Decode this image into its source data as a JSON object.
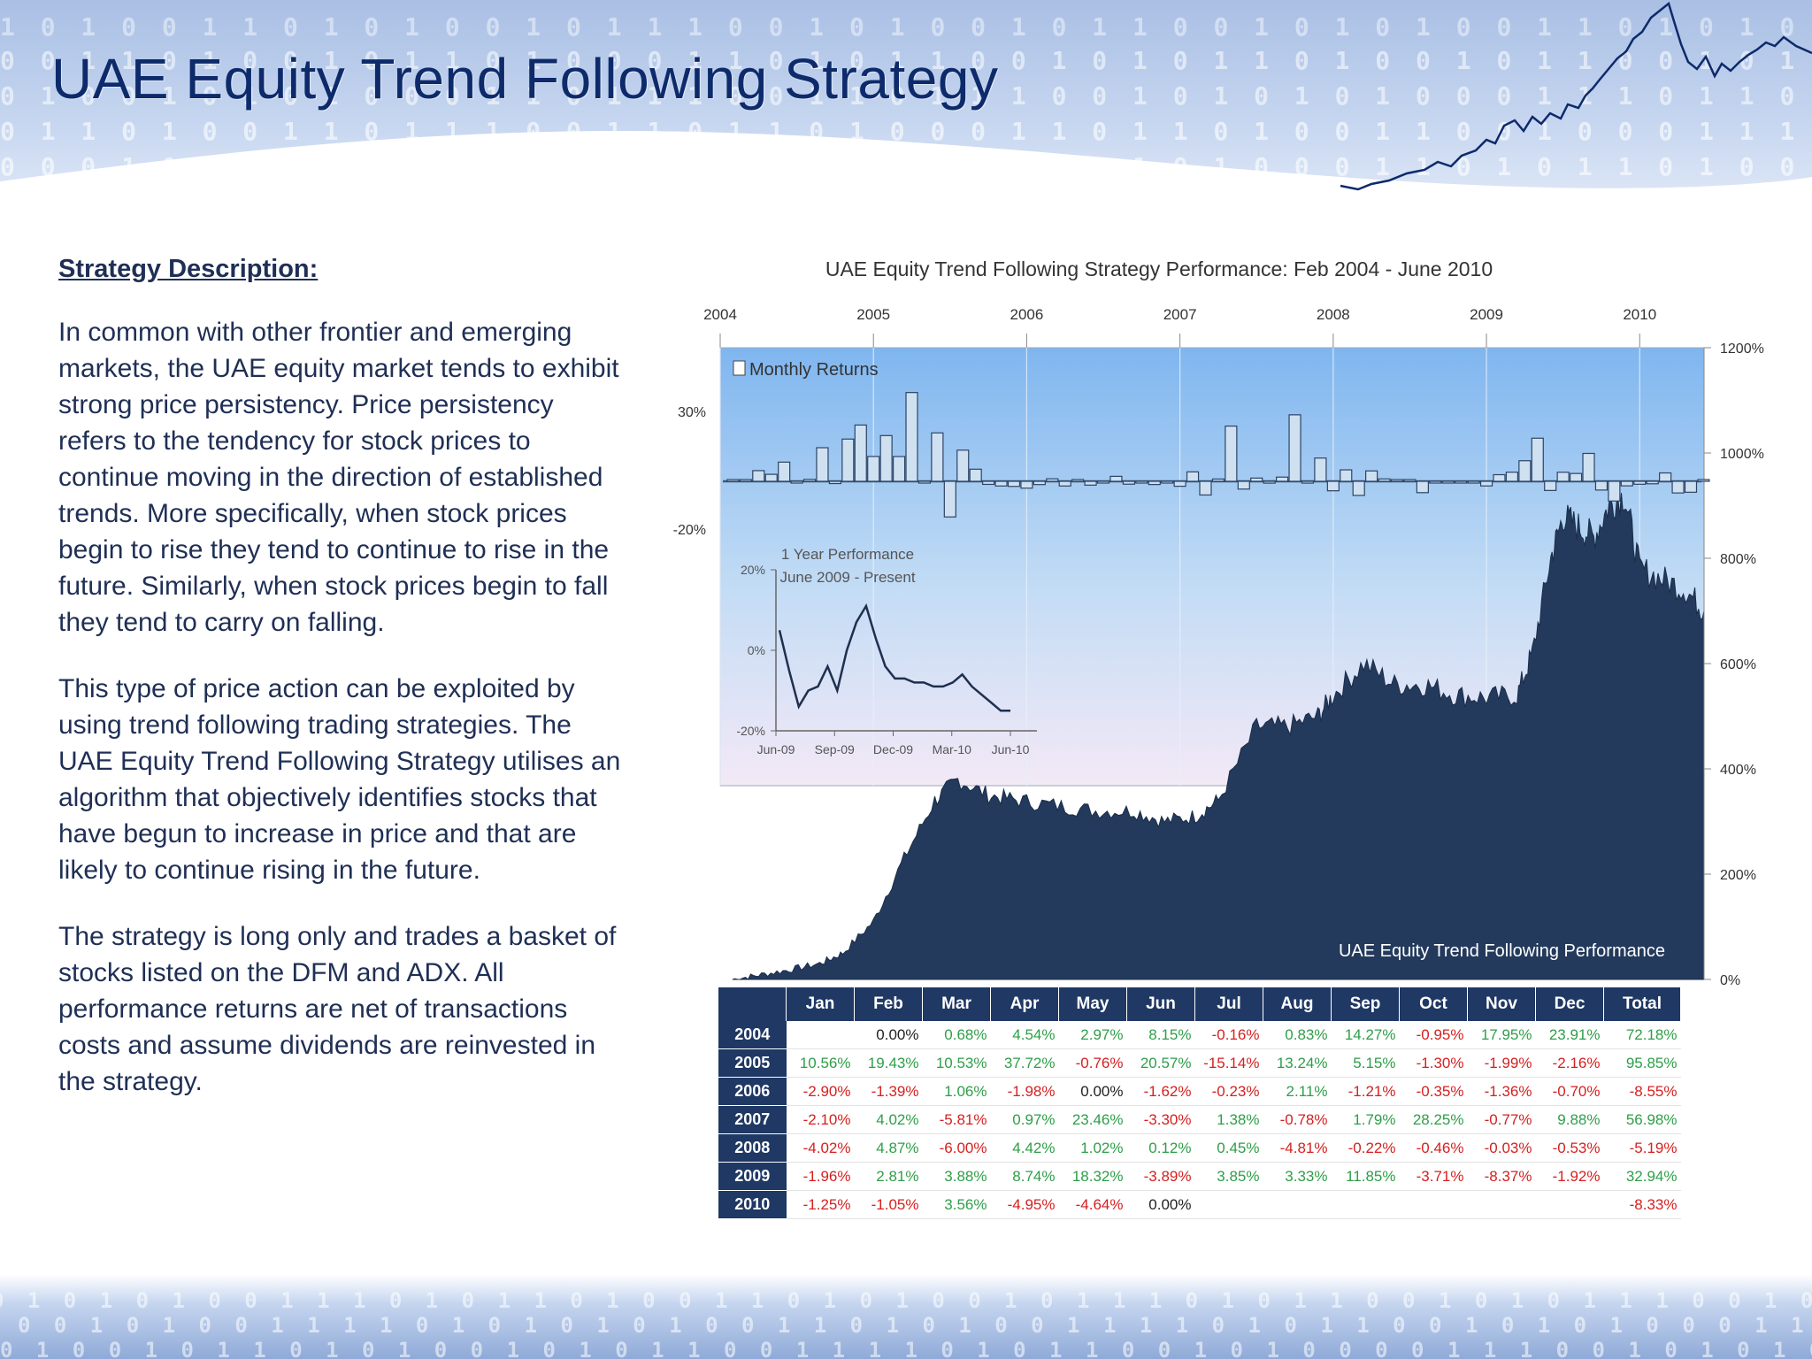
{
  "slide": {
    "title": "UAE Equity Trend Following Strategy"
  },
  "description": {
    "heading": "Strategy Description:",
    "paragraphs": [
      "In common with other frontier and emerging markets, the UAE equity market tends to exhibit strong price persistency.  Price persistency refers to the tendency for stock prices to continue moving in the direction of established trends.  More specifically, when stock prices begin to rise they tend to continue to rise in the future. Similarly, when stock prices begin to fall they tend to carry on falling.",
      "This type of price action can be exploited by using trend following trading strategies.  The UAE Equity Trend Following Strategy utilises an algorithm that objectively identifies stocks that have begun to increase in price and that are likely to continue rising in the future.",
      "The strategy is long only and trades a basket of stocks listed on the DFM and ADX.  All performance returns are net of transactions costs and assume dividends are reinvested in the strategy."
    ]
  },
  "banner": {
    "binary_rows": [
      "1 0 1 0 0 1 1 0 1 0 1 0 0 1 0 1 1 1 0 0 1 0 1 0 0 1 0 1 1 0 0 1 0 1 0 1 0 0 1 1 0 1 0 1 0 0 1 0 1 1 0 1 0",
      "0 0 1 1 0 1 0 0 1 0 1 1 0 1 0 0 0 1 1 0 1 0 1 1 0 0 1 0 1 0 1 1 0 1 0 0 1 0 1 1 0 0 1 0 1 0 1 1 0 1 0",
      "0 1 0 0 1 0 1 0 1 0 0 0 1 1 0 1 1 1 0 0 1 1 0 1 1 1 0 0 1 0 1 0 1 0 1 0 0 0 1 1 1 0 1 1 0 1 0 1 0 0 1",
      "0 1 1 0 1 0 0 1 1 0 1 1 1 0 0 1 1 0 1 1 0 1 0 0 0 1 1 0 1 1 0 1 0 0 1 1 0 0 1 0 0 0 1 1 1 0 1 1 0 1",
      "0 0 0 1 0 1 0 0 0 1 1 0 1 0 1 0 0 1 0 1 1 0 1 1 0 1 0 0 1 0 1 0 0 0 1 1 0 1 0 1 1 0 1 0 0 1 0 1 0 1"
    ],
    "footer_rows": [
      "0 1 0 1 0 1 0 0 1 1 1 0 1 0 1 1 0 1 0 0 1 1 0 1 0 1 0 0 1 0 1 1 1 0 1 0 1 1 0 0 1 0 1 0 1 1 1 0 0 1 0 1 0 1 0 0 1 1 0 1 0 1",
      "0 0 1 0 1 0 0 1 1 1 1 0 1 0 1 0 1 0 1 0 0 1 1 0 1 0 1 0 0 1 1 1 1 0 1 0 1 1 0 0 1 0 1 0 1 0 0 0 1 1 0 0 1 0 1 0 1 1 0 1 0 1",
      "0 1 0 0 1 0 1 1 0 1 0 1 0 0 1 0 1 0 1 1 0 0 1 1 1 1 0 1 0 1 1 0 0 1 0 1 0 0 0 0 1 1 1 0 0 1 0 1 0 1 0 1 1 0 0 1 0 1 0 1 1 0"
    ]
  },
  "chart_data": [
    {
      "type": "area",
      "title": "UAE Equity Trend Following  Strategy Performance:  Feb 2004  -  June 2010",
      "x_axis_years": [
        "2004",
        "2005",
        "2006",
        "2007",
        "2008",
        "2009",
        "2010"
      ],
      "right_axis_ticks": [
        "1200%",
        "1000%",
        "800%",
        "600%",
        "400%",
        "200%",
        "0%"
      ],
      "ylim": [
        0,
        1200
      ],
      "series_label": "UAE Equity Trend Following Performance",
      "x": [
        2004.08,
        2004.25,
        2004.45,
        2004.65,
        2004.8,
        2005.0,
        2005.2,
        2005.4,
        2005.55,
        2005.75,
        2005.95,
        2006.2,
        2006.45,
        2006.7,
        2006.9,
        2007.1,
        2007.25,
        2007.5,
        2007.7,
        2007.9,
        2008.0,
        2008.2,
        2008.4,
        2008.6,
        2008.8,
        2009.0,
        2009.2,
        2009.3,
        2009.42,
        2009.5,
        2009.6,
        2009.7,
        2009.8,
        2009.9,
        2010.0,
        2010.15,
        2010.3,
        2010.42
      ],
      "y": [
        0,
        8,
        18,
        30,
        50,
        110,
        230,
        340,
        380,
        350,
        340,
        330,
        320,
        320,
        300,
        310,
        340,
        480,
        480,
        500,
        540,
        600,
        560,
        560,
        540,
        535,
        540,
        620,
        800,
        880,
        860,
        840,
        900,
        920,
        780,
        760,
        740,
        700
      ]
    },
    {
      "type": "bar",
      "title": "",
      "legend": "Monthly Returns",
      "y_ticks": [
        "30%",
        "-20%"
      ],
      "ylim": [
        -20,
        30
      ],
      "note": "Same values as the monthly returns table below"
    },
    {
      "type": "line",
      "title": "1 Year Performance",
      "subtitle": "June 2009 - Present",
      "x_ticks": [
        "Jun-09",
        "Sep-09",
        "Dec-09",
        "Mar-10",
        "Jun-10"
      ],
      "y_ticks": [
        "20%",
        "0%",
        "-20%"
      ],
      "ylim": [
        -20,
        20
      ],
      "x": [
        0,
        0.5,
        1,
        1.5,
        2,
        2.5,
        3,
        3.5,
        4,
        4.5,
        5,
        5.5,
        6,
        6.5,
        7,
        7.5,
        8,
        8.5,
        9,
        9.5,
        10,
        10.5,
        11,
        11.5,
        12
      ],
      "y": [
        5,
        -5,
        -14,
        -10,
        -9,
        -4,
        -10,
        0,
        7,
        11,
        3,
        -4,
        -7,
        -7,
        -8,
        -8,
        -9,
        -9,
        -8,
        -6,
        -9,
        -11,
        -13,
        -15,
        -15
      ]
    },
    {
      "type": "table",
      "columns": [
        "Jan",
        "Feb",
        "Mar",
        "Apr",
        "May",
        "Jun",
        "Jul",
        "Aug",
        "Sep",
        "Oct",
        "Nov",
        "Dec",
        "Total"
      ],
      "rows": [
        {
          "year": "2004",
          "values": [
            "",
            "0.00%",
            "0.68%",
            "4.54%",
            "2.97%",
            "8.15%",
            "-0.16%",
            "0.83%",
            "14.27%",
            "-0.95%",
            "17.95%",
            "23.91%",
            "72.18%"
          ]
        },
        {
          "year": "2005",
          "values": [
            "10.56%",
            "19.43%",
            "10.53%",
            "37.72%",
            "-0.76%",
            "20.57%",
            "-15.14%",
            "13.24%",
            "5.15%",
            "-1.30%",
            "-1.99%",
            "-2.16%",
            "95.85%"
          ]
        },
        {
          "year": "2006",
          "values": [
            "-2.90%",
            "-1.39%",
            "1.06%",
            "-1.98%",
            "0.00%",
            "-1.62%",
            "-0.23%",
            "2.11%",
            "-1.21%",
            "-0.35%",
            "-1.36%",
            "-0.70%",
            "-8.55%"
          ]
        },
        {
          "year": "2007",
          "values": [
            "-2.10%",
            "4.02%",
            "-5.81%",
            "0.97%",
            "23.46%",
            "-3.30%",
            "1.38%",
            "-0.78%",
            "1.79%",
            "28.25%",
            "-0.77%",
            "9.88%",
            "56.98%"
          ]
        },
        {
          "year": "2008",
          "values": [
            "-4.02%",
            "4.87%",
            "-6.00%",
            "4.42%",
            "1.02%",
            "0.12%",
            "0.45%",
            "-4.81%",
            "-0.22%",
            "-0.46%",
            "-0.03%",
            "-0.53%",
            "-5.19%"
          ]
        },
        {
          "year": "2009",
          "values": [
            "-1.96%",
            "2.81%",
            "3.88%",
            "8.74%",
            "18.32%",
            "-3.89%",
            "3.85%",
            "3.33%",
            "11.85%",
            "-3.71%",
            "-8.37%",
            "-1.92%",
            "32.94%"
          ]
        },
        {
          "year": "2010",
          "values": [
            "-1.25%",
            "-1.05%",
            "3.56%",
            "-4.95%",
            "-4.64%",
            "0.00%",
            "",
            "",
            "",
            "",
            "",
            "",
            "-8.33%"
          ]
        }
      ]
    }
  ],
  "colors": {
    "title": "#0d2a6b",
    "area_fill": "#233a5c",
    "plot_bg_top": "#7fb6ef",
    "plot_bg_bottom": "#f3e9f6",
    "table_header": "#1f3864",
    "positive": "#2e9e48",
    "negative": "#d62020",
    "zero": "#222222"
  }
}
